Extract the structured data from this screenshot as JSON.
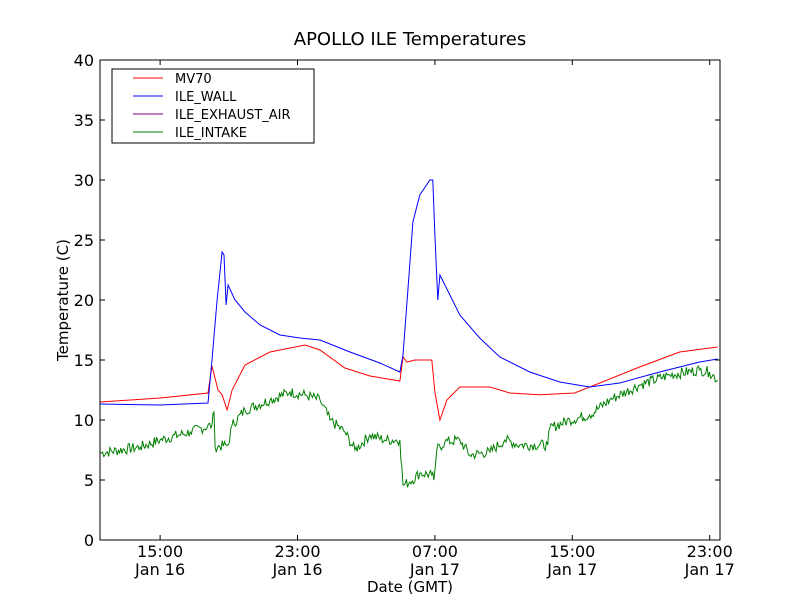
{
  "chart_data": {
    "type": "line",
    "title": "APOLLO ILE Temperatures",
    "xlabel": "Date (GMT)",
    "ylabel": "Temperature (C)",
    "x_unit": "hours since Jan 16 00:00 GMT",
    "xlim": [
      11.5,
      47.6
    ],
    "ylim": [
      0,
      40
    ],
    "yticks": [
      0,
      5,
      10,
      15,
      20,
      25,
      30,
      35,
      40
    ],
    "xticks": [
      {
        "value": 15,
        "time": "15:00",
        "date": "Jan 16"
      },
      {
        "value": 23,
        "time": "23:00",
        "date": "Jan 16"
      },
      {
        "value": 31,
        "time": "07:00",
        "date": "Jan 17"
      },
      {
        "value": 39,
        "time": "15:00",
        "date": "Jan 17"
      },
      {
        "value": 47,
        "time": "23:00",
        "date": "Jan 17"
      }
    ],
    "grid": false,
    "legend_position": "top-left",
    "series": [
      {
        "name": "MV70",
        "color": "#ff0000",
        "x": [
          11.51,
          15,
          17.79,
          18.02,
          18.37,
          18.61,
          18.9,
          19.19,
          19.94,
          21.4,
          23.44,
          24.31,
          25.76,
          27.22,
          28.96,
          29.14,
          29.37,
          29.83,
          30.82,
          31.0,
          31.29,
          31.7,
          32.45,
          34.2,
          35.36,
          37.11,
          39.14,
          40.6,
          42.92,
          45.25,
          47.46
        ],
        "y": [
          11.5,
          11.83,
          12.25,
          14.5,
          12.5,
          12.1,
          10.83,
          12.5,
          14.58,
          15.67,
          16.25,
          15.83,
          14.33,
          13.67,
          13.25,
          15.25,
          14.83,
          15,
          15,
          12.33,
          10,
          11.67,
          12.75,
          12.75,
          12.25,
          12.1,
          12.25,
          13.08,
          14.42,
          15.67,
          16.08
        ]
      },
      {
        "name": "ILE_WALL",
        "color": "#0000ff",
        "x": [
          11.51,
          15,
          17.79,
          18.02,
          18.32,
          18.61,
          18.72,
          18.84,
          18.96,
          19.36,
          19.94,
          20.82,
          21.98,
          23.14,
          24.31,
          26.05,
          27.8,
          28.96,
          29.14,
          29.43,
          29.72,
          30.12,
          30.71,
          30.88,
          31.0,
          31.17,
          31.29,
          31.58,
          32.45,
          33.61,
          34.78,
          36.52,
          38.27,
          40.01,
          41.76,
          44.09,
          46.41,
          47.46
        ],
        "y": [
          11.33,
          11.25,
          11.42,
          15,
          20,
          24,
          23.75,
          19.58,
          21.25,
          20,
          19,
          17.92,
          17.08,
          16.83,
          16.67,
          15.67,
          14.75,
          14,
          15.42,
          20.83,
          26.5,
          28.75,
          30,
          30,
          25.42,
          20,
          22.08,
          21.25,
          18.75,
          16.83,
          15.25,
          14,
          13.17,
          12.75,
          13.08,
          14,
          14.83,
          15.08
        ]
      },
      {
        "name": "ILE_EXHAUST_AIR",
        "color": "#800080",
        "x": [],
        "y": []
      },
      {
        "name": "ILE_INTAKE",
        "color": "#008000",
        "x": [
          11.51,
          13.84,
          15,
          16.75,
          18.02,
          18.14,
          18.2,
          18.96,
          19.19,
          19.94,
          21.4,
          22.56,
          23.44,
          24.31,
          24.89,
          25.76,
          26.34,
          27.22,
          28.09,
          28.96,
          29.14,
          29.54,
          30.12,
          30.82,
          30.94,
          31.11,
          31.58,
          32.45,
          33.03,
          34.2,
          35.07,
          35.94,
          37.57,
          37.69,
          38.85,
          40.01,
          41.18,
          42.92,
          44.67,
          46.41,
          46.99,
          47.46
        ],
        "y": [
          7.25,
          7.75,
          8.33,
          9,
          9.58,
          10.67,
          7.75,
          7.92,
          9.58,
          10.83,
          11.67,
          12.33,
          12.08,
          11.67,
          10,
          9,
          7.5,
          8.75,
          8.33,
          8.33,
          4.58,
          4.83,
          5.58,
          5.42,
          5,
          7.5,
          8.17,
          8.33,
          7.08,
          7.33,
          8.33,
          7.92,
          7.92,
          9.33,
          10,
          10.42,
          11.67,
          12.92,
          13.75,
          14.17,
          14,
          13.33
        ]
      }
    ]
  }
}
